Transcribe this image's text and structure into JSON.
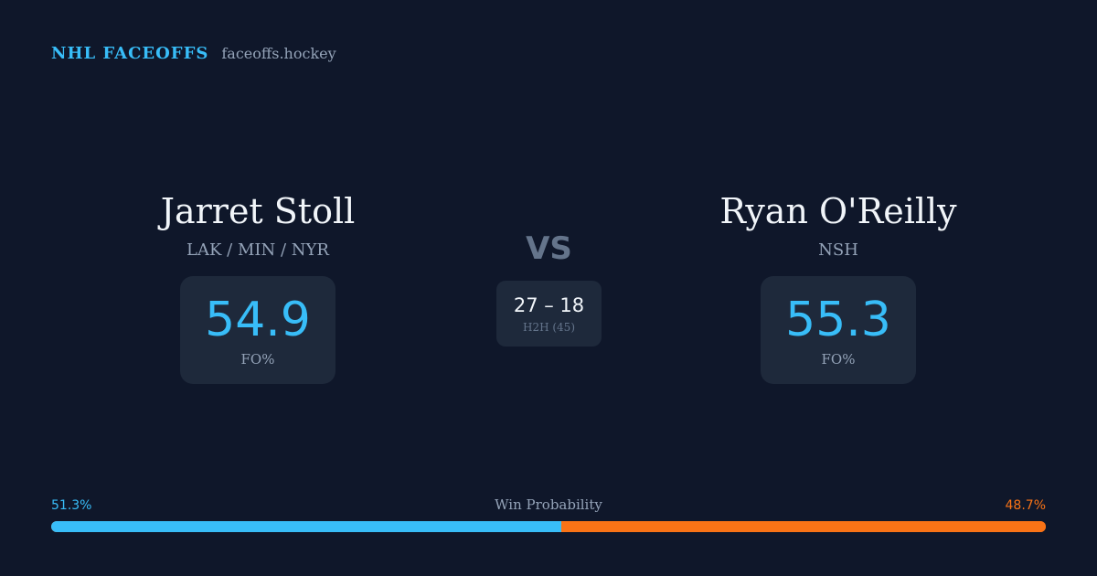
{
  "header": {
    "brand": "NHL FACEOFFS",
    "site": "faceoffs.hockey"
  },
  "player_left": {
    "name": "Jarret Stoll",
    "teams": "LAK / MIN / NYR",
    "fo_pct": "54.9",
    "fo_label": "FO%"
  },
  "player_right": {
    "name": "Ryan O'Reilly",
    "teams": "NSH",
    "fo_pct": "55.3",
    "fo_label": "FO%"
  },
  "matchup": {
    "vs_label": "VS",
    "h2h_score": "27 – 18",
    "h2h_label": "H2H (45)"
  },
  "win_probability": {
    "title": "Win Probability",
    "left_pct_label": "51.3%",
    "right_pct_label": "48.7%",
    "left_value": 51.3,
    "right_value": 48.7
  },
  "colors": {
    "background": "#0f172a",
    "card": "#1e293b",
    "accent_left": "#38bdf8",
    "accent_right": "#f97316"
  }
}
